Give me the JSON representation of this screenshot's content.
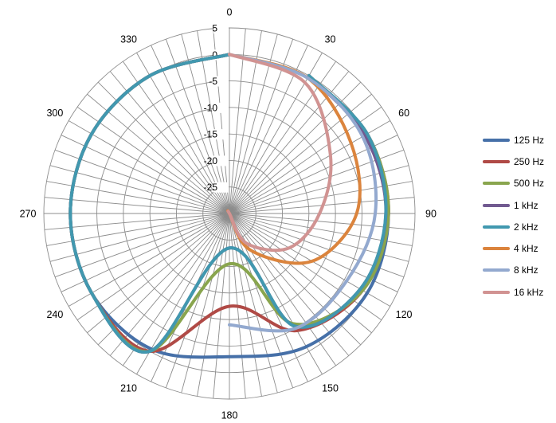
{
  "chart_data": {
    "type": "polar-line",
    "angle_ticks": [
      "0",
      "30",
      "60",
      "90",
      "120",
      "150",
      "180",
      "210",
      "240",
      "270",
      "300",
      "330"
    ],
    "radial_ticks": [
      "5",
      "0",
      "-5",
      "-10",
      "-15",
      "-20",
      "-25"
    ],
    "rlim": [
      -30,
      5
    ],
    "angle_grid_step_deg": 5,
    "grid": true,
    "legend_position": "right",
    "series": [
      {
        "name": "125 Hz",
        "color": "#4670a8",
        "theta": [
          0,
          30,
          60,
          90,
          120,
          150,
          180,
          210,
          240,
          270,
          300,
          330
        ],
        "r": [
          0,
          0,
          0,
          0,
          0,
          -0.5,
          -3,
          -1,
          0,
          0,
          0,
          0
        ]
      },
      {
        "name": "250 Hz",
        "color": "#b04a46",
        "theta": [
          0,
          30,
          60,
          90,
          120,
          150,
          180,
          210,
          240,
          270,
          300,
          330
        ],
        "r": [
          0,
          0,
          0,
          0,
          0,
          0,
          -12.5,
          -4.5,
          -1,
          0,
          0,
          0
        ]
      },
      {
        "name": "500 Hz",
        "color": "#89a54e",
        "theta": [
          0,
          30,
          60,
          90,
          120,
          150,
          180,
          210,
          240,
          270,
          300,
          330
        ],
        "r": [
          0,
          0,
          0,
          0,
          0,
          0,
          -20.5,
          -6,
          -1,
          0,
          0,
          0
        ]
      },
      {
        "name": "1 kHz",
        "color": "#715a90",
        "theta": [
          0,
          30,
          60,
          90,
          120,
          150,
          180,
          210,
          240,
          270,
          300,
          330
        ],
        "r": [
          0,
          0,
          0,
          0,
          0,
          0,
          -23.5,
          -5.5,
          -1.5,
          -0.5,
          -0.5,
          0
        ]
      },
      {
        "name": "2 kHz",
        "color": "#4198af",
        "theta": [
          0,
          30,
          60,
          90,
          120,
          150,
          180,
          210,
          240,
          270,
          300,
          330
        ],
        "r": [
          0,
          0,
          0,
          0,
          0,
          0,
          -23.5,
          -5.5,
          -1.5,
          -0.5,
          0,
          0
        ]
      },
      {
        "name": "4 kHz",
        "color": "#db843d",
        "theta": [
          0,
          30,
          60,
          90,
          120,
          150,
          180,
          210,
          240
        ],
        "r": [
          0,
          -0.5,
          -3.5,
          -6,
          -12,
          -22,
          -30,
          -30,
          -30
        ]
      },
      {
        "name": "8 kHz",
        "color": "#93a9cf",
        "theta": [
          0,
          30,
          60,
          90,
          120,
          150,
          180
        ],
        "r": [
          0,
          -0.5,
          -1,
          -2.5,
          -4.5,
          -5,
          -9
        ]
      },
      {
        "name": "16 kHz",
        "color": "#d19392",
        "theta": [
          0,
          30,
          60,
          90,
          120,
          150,
          180,
          210,
          240
        ],
        "r": [
          0,
          -1.5,
          -8,
          -13,
          -17,
          -23.5,
          -30,
          -30,
          -30
        ]
      }
    ]
  }
}
